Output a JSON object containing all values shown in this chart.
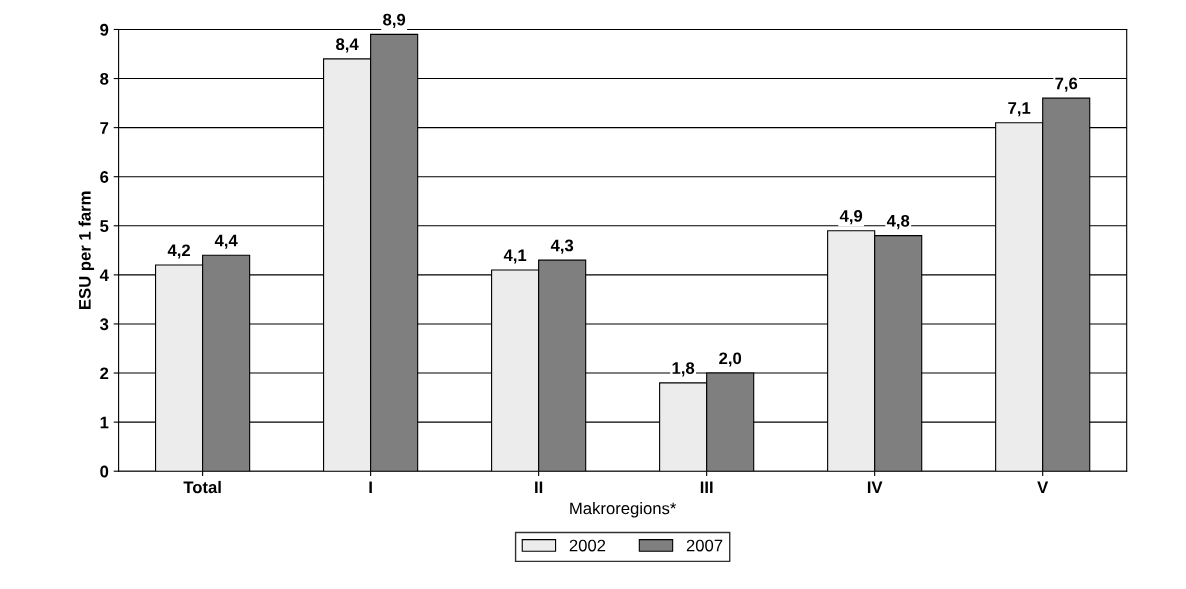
{
  "chart_data": {
    "type": "bar",
    "xlabel": "Makroregions*",
    "ylabel": "ESU per 1 farm",
    "categories": [
      "Total",
      "I",
      "II",
      "III",
      "IV",
      "V"
    ],
    "series": [
      {
        "name": "2002",
        "color": "#ececec",
        "values": [
          4.2,
          8.4,
          4.1,
          1.8,
          4.9,
          7.1
        ],
        "value_labels": [
          "4,2",
          "8,4",
          "4,1",
          "1,8",
          "4,9",
          "7,1"
        ]
      },
      {
        "name": "2007",
        "color": "#7f7f7f",
        "values": [
          4.4,
          8.9,
          4.3,
          2.0,
          4.8,
          7.6
        ],
        "value_labels": [
          "4,4",
          "8,9",
          "4,3",
          "2,0",
          "4,8",
          "7,6"
        ]
      }
    ],
    "ylim": [
      0,
      9
    ],
    "yticks": [
      0,
      1,
      2,
      3,
      4,
      5,
      6,
      7,
      8,
      9
    ],
    "grid": "y",
    "legend": "bottom"
  }
}
